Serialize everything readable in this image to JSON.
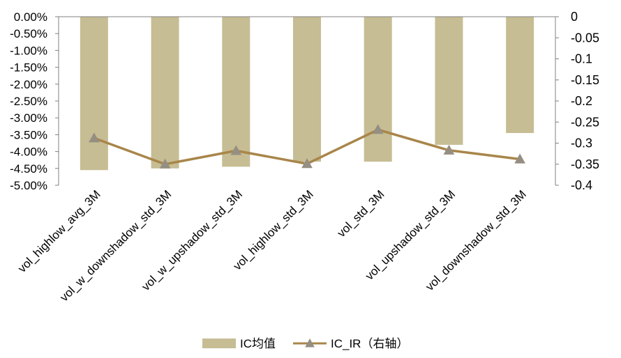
{
  "chart_data": {
    "type": "bar+line",
    "categories": [
      "vol_highlow_avg_3M",
      "vol_w_downshadow_std_3M",
      "vol_w_upshadow_std_3M",
      "vol_highlow_std_3M",
      "vol_std_3M",
      "vol_upshadow_std_3M",
      "vol_downshadow_std_3M"
    ],
    "series": [
      {
        "name": "IC均值",
        "type": "bar",
        "axis": "left",
        "color": "#c6bd94",
        "values": [
          -4.55,
          -4.5,
          -4.45,
          -4.3,
          -4.3,
          -3.8,
          -3.45
        ]
      },
      {
        "name": "IC_IR（右轴）",
        "type": "line",
        "axis": "right",
        "color": "#a8864a",
        "marker_color": "#958f83",
        "marker": "triangle",
        "values": [
          -0.288,
          -0.35,
          -0.318,
          -0.349,
          -0.268,
          -0.317,
          -0.338
        ]
      }
    ],
    "left_axis": {
      "ylim": [
        -5.0,
        0.0
      ],
      "ticks": [
        "0.00%",
        "-0.50%",
        "-1.00%",
        "-1.50%",
        "-2.00%",
        "-2.50%",
        "-3.00%",
        "-3.50%",
        "-4.00%",
        "-4.50%",
        "-5.00%"
      ]
    },
    "right_axis": {
      "ylim": [
        -0.4,
        0.0
      ],
      "ticks": [
        "0",
        "-0.05",
        "-0.1",
        "-0.15",
        "-0.2",
        "-0.25",
        "-0.3",
        "-0.35",
        "-0.4"
      ]
    },
    "legend_position": "bottom",
    "grid": false
  }
}
